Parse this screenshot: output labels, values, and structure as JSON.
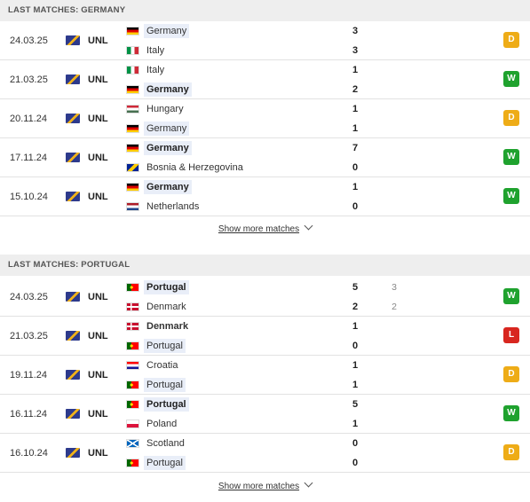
{
  "sections": [
    {
      "title": "LAST MATCHES: GERMANY",
      "show_more": "Show more matches",
      "matches": [
        {
          "date": "24.03.25",
          "competition": "UNL",
          "home": {
            "name": "Germany",
            "flag": "germany-flag",
            "style": "highlight"
          },
          "away": {
            "name": "Italy",
            "flag": "italy-flag",
            "style": "normal"
          },
          "home_score": "3",
          "away_score": "3",
          "home_sub": "",
          "away_sub": "",
          "result": "D"
        },
        {
          "date": "21.03.25",
          "competition": "UNL",
          "home": {
            "name": "Italy",
            "flag": "italy-flag",
            "style": "normal"
          },
          "away": {
            "name": "Germany",
            "flag": "germany-flag",
            "style": "winner"
          },
          "home_score": "1",
          "away_score": "2",
          "home_sub": "",
          "away_sub": "",
          "result": "W"
        },
        {
          "date": "20.11.24",
          "competition": "UNL",
          "home": {
            "name": "Hungary",
            "flag": "hungary-flag",
            "style": "normal"
          },
          "away": {
            "name": "Germany",
            "flag": "germany-flag",
            "style": "highlight"
          },
          "home_score": "1",
          "away_score": "1",
          "home_sub": "",
          "away_sub": "",
          "result": "D"
        },
        {
          "date": "17.11.24",
          "competition": "UNL",
          "home": {
            "name": "Germany",
            "flag": "germany-flag",
            "style": "winner"
          },
          "away": {
            "name": "Bosnia & Herzegovina",
            "flag": "bosnia-flag",
            "style": "normal"
          },
          "home_score": "7",
          "away_score": "0",
          "home_sub": "",
          "away_sub": "",
          "result": "W"
        },
        {
          "date": "15.10.24",
          "competition": "UNL",
          "home": {
            "name": "Germany",
            "flag": "germany-flag",
            "style": "winner"
          },
          "away": {
            "name": "Netherlands",
            "flag": "netherlands-flag",
            "style": "normal"
          },
          "home_score": "1",
          "away_score": "0",
          "home_sub": "",
          "away_sub": "",
          "result": "W"
        }
      ]
    },
    {
      "title": "LAST MATCHES: PORTUGAL",
      "show_more": "Show more matches",
      "matches": [
        {
          "date": "24.03.25",
          "competition": "UNL",
          "home": {
            "name": "Portugal",
            "flag": "portugal-flag",
            "style": "winner"
          },
          "away": {
            "name": "Denmark",
            "flag": "denmark-flag",
            "style": "normal"
          },
          "home_score": "5",
          "away_score": "2",
          "home_sub": "3",
          "away_sub": "2",
          "result": "W"
        },
        {
          "date": "21.03.25",
          "competition": "UNL",
          "home": {
            "name": "Denmark",
            "flag": "denmark-flag",
            "style": "winner-plain"
          },
          "away": {
            "name": "Portugal",
            "flag": "portugal-flag",
            "style": "highlight"
          },
          "home_score": "1",
          "away_score": "0",
          "home_sub": "",
          "away_sub": "",
          "result": "L"
        },
        {
          "date": "19.11.24",
          "competition": "UNL",
          "home": {
            "name": "Croatia",
            "flag": "croatia-flag",
            "style": "normal"
          },
          "away": {
            "name": "Portugal",
            "flag": "portugal-flag",
            "style": "highlight"
          },
          "home_score": "1",
          "away_score": "1",
          "home_sub": "",
          "away_sub": "",
          "result": "D"
        },
        {
          "date": "16.11.24",
          "competition": "UNL",
          "home": {
            "name": "Portugal",
            "flag": "portugal-flag",
            "style": "winner"
          },
          "away": {
            "name": "Poland",
            "flag": "poland-flag",
            "style": "normal"
          },
          "home_score": "5",
          "away_score": "1",
          "home_sub": "",
          "away_sub": "",
          "result": "W"
        },
        {
          "date": "16.10.24",
          "competition": "UNL",
          "home": {
            "name": "Scotland",
            "flag": "scotland-flag",
            "style": "normal"
          },
          "away": {
            "name": "Portugal",
            "flag": "portugal-flag",
            "style": "highlight"
          },
          "home_score": "0",
          "away_score": "0",
          "home_sub": "",
          "away_sub": "",
          "result": "D"
        }
      ]
    }
  ],
  "colors": {
    "win": "#1fa22e",
    "draw": "#eeac17",
    "loss": "#d8261f",
    "highlight_bg": "#e9eef8",
    "header_bg": "#eeeeee"
  }
}
